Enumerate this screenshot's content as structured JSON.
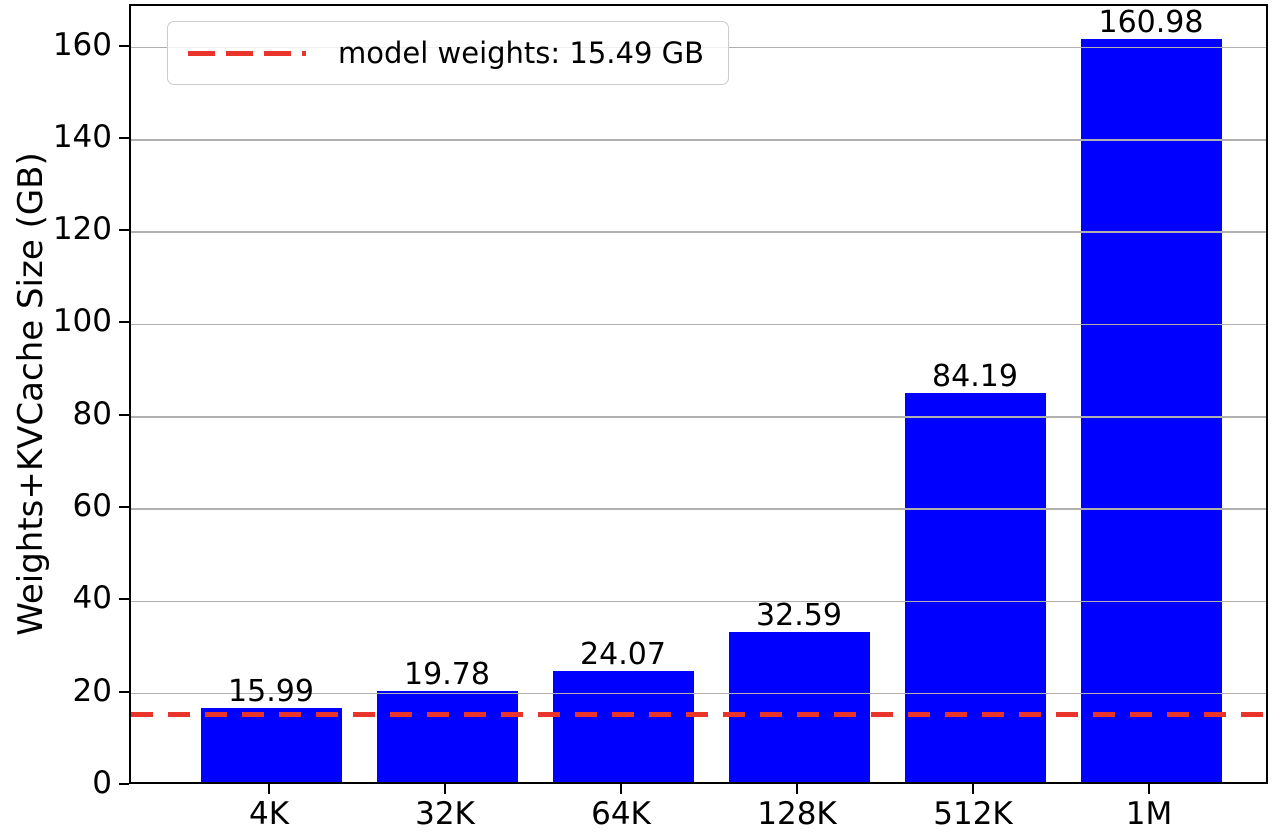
{
  "chart_data": {
    "type": "bar",
    "title": "",
    "xlabel": "",
    "ylabel": "Weights+KVCache Size (GB)",
    "categories": [
      "4K",
      "32K",
      "64K",
      "128K",
      "512K",
      "1M"
    ],
    "values": [
      15.99,
      19.78,
      24.07,
      32.59,
      84.19,
      160.98
    ],
    "bar_value_labels": [
      "15.99",
      "19.78",
      "24.07",
      "32.59",
      "84.19",
      "160.98"
    ],
    "ylim": [
      0,
      169
    ],
    "yticks": [
      0,
      20,
      40,
      60,
      80,
      100,
      120,
      140,
      160
    ],
    "ytick_labels": [
      "0",
      "20",
      "40",
      "60",
      "80",
      "100",
      "120",
      "140",
      "160"
    ],
    "grid": "horizontal gridlines at y ticks, drawn over bars",
    "legend_label": "model weights: 15.49 GB",
    "legend_position": "upper left",
    "reference_line": {
      "value": 15.49,
      "style": "dashed",
      "label": "model weights: 15.49 GB"
    },
    "colors": {
      "bar": "#0000ff",
      "reference_line": "#e8342a",
      "grid": "#b0b0b0",
      "text": "#000000",
      "legend_border": "#cccccc",
      "background": "#ffffff"
    }
  }
}
